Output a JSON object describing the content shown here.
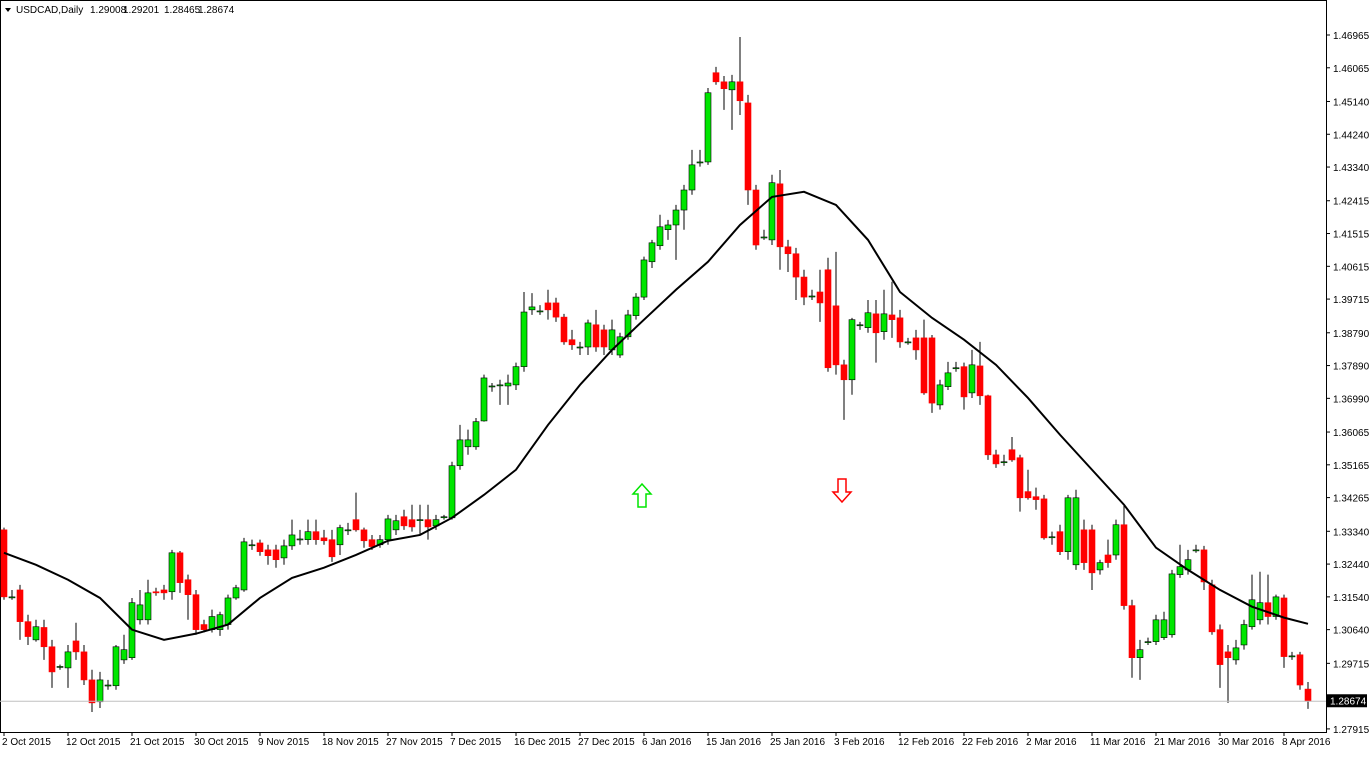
{
  "chart_data": {
    "type": "candlestick",
    "title": "USDCAD,Daily",
    "up_color": "#00e600",
    "down_color": "#ff0000",
    "ma_color": "#000000",
    "xlim": [
      -0.5,
      165.25
    ],
    "ylim": [
      1.2783,
      1.47926
    ],
    "yticks": [
      1.46965,
      1.46065,
      {
        "value": 1.4514,
        "label": "1.45140"
      },
      {
        "value": 1.4424,
        "label": "1.44240"
      },
      {
        "value": 1.4334,
        "label": "1.43340"
      },
      1.42415,
      1.41515,
      1.40615,
      1.39715,
      {
        "value": 1.3879,
        "label": "1.38790"
      },
      {
        "value": 1.3789,
        "label": "1.37890"
      },
      {
        "value": 1.3699,
        "label": "1.36990"
      },
      1.36065,
      1.35165,
      1.34265,
      {
        "value": 1.3334,
        "label": "1.33340"
      },
      {
        "value": 1.3244,
        "label": "1.32440"
      },
      {
        "value": 1.3154,
        "label": "1.31540"
      },
      {
        "value": 1.3064,
        "label": "1.30640"
      },
      1.29715,
      1.27915
    ],
    "xticks": [
      {
        "value": 0,
        "label": "2 Oct 2015"
      },
      {
        "value": 8,
        "label": "12 Oct 2015"
      },
      {
        "value": 16,
        "label": "21 Oct 2015"
      },
      {
        "value": 24,
        "label": "30 Oct 2015"
      },
      {
        "value": 32,
        "label": "9 Nov 2015"
      },
      {
        "value": 40,
        "label": "18 Nov 2015"
      },
      {
        "value": 48,
        "label": "27 Nov 2015"
      },
      {
        "value": 56,
        "label": "7 Dec 2015"
      },
      {
        "value": 64,
        "label": "16 Dec 2015"
      },
      {
        "value": 72,
        "label": "27 Dec 2015"
      },
      {
        "value": 80,
        "label": "6 Jan 2016"
      },
      {
        "value": 88,
        "label": "15 Jan 2016"
      },
      {
        "value": 96,
        "label": "25 Jan 2016"
      },
      {
        "value": 104,
        "label": "3 Feb 2016"
      },
      {
        "value": 112,
        "label": "12 Feb 2016"
      },
      {
        "value": 120,
        "label": "22 Feb 2016"
      },
      {
        "value": 128,
        "label": "2 Mar 2016"
      },
      {
        "value": 136,
        "label": "11 Mar 2016"
      },
      {
        "value": 144,
        "label": "21 Mar 2016"
      },
      {
        "value": 152,
        "label": "30 Mar 2016"
      },
      {
        "value": 160,
        "label": "8 Apr 2016"
      }
    ],
    "ohlc": [
      [
        1.3338,
        1.3344,
        1.3146,
        1.3154
      ],
      [
        1.3154,
        1.3173,
        1.3146,
        1.3154
      ],
      [
        1.3173,
        1.3187,
        1.3036,
        1.3086
      ],
      [
        1.3086,
        1.3105,
        1.3022,
        1.3045
      ],
      [
        1.3036,
        1.3091,
        1.3031,
        1.3072
      ],
      [
        1.307,
        1.3091,
        1.2981,
        1.3017
      ],
      [
        1.3017,
        1.3036,
        1.2904,
        1.2948
      ],
      [
        1.2963,
        1.2968,
        1.2954,
        1.2963
      ],
      [
        1.2959,
        1.3022,
        1.2904,
        1.3003
      ],
      [
        1.3033,
        1.3083,
        1.2981,
        1.3003
      ],
      [
        1.3003,
        1.3022,
        1.2912,
        1.2926
      ],
      [
        1.2926,
        1.2954,
        1.2838,
        1.2863
      ],
      [
        1.2866,
        1.2948,
        1.2849,
        1.2926
      ],
      [
        1.2912,
        1.2926,
        1.2899,
        1.2912
      ],
      [
        1.291,
        1.3022,
        1.2899,
        1.3017
      ],
      [
        1.2981,
        1.305,
        1.297,
        1.3009
      ],
      [
        1.2987,
        1.3151,
        1.2981,
        1.3138
      ],
      [
        1.3091,
        1.3173,
        1.3078,
        1.3132
      ],
      [
        1.3091,
        1.3201,
        1.3078,
        1.3165
      ],
      [
        1.3168,
        1.3179,
        1.3157,
        1.3165
      ],
      [
        1.3173,
        1.3187,
        1.3146,
        1.3165
      ],
      [
        1.3168,
        1.3283,
        1.3146,
        1.3275
      ],
      [
        1.3275,
        1.328,
        1.3165,
        1.3193
      ],
      [
        1.3201,
        1.3215,
        1.3091,
        1.316
      ],
      [
        1.316,
        1.3173,
        1.305,
        1.3064
      ],
      [
        1.3078,
        1.3091,
        1.3056,
        1.3064
      ],
      [
        1.3064,
        1.3119,
        1.3056,
        1.31
      ],
      [
        1.3064,
        1.3113,
        1.3047,
        1.3105
      ],
      [
        1.3078,
        1.316,
        1.3064,
        1.3151
      ],
      [
        1.3151,
        1.3187,
        1.3146,
        1.3179
      ],
      [
        1.3173,
        1.3316,
        1.3168,
        1.3305
      ],
      [
        1.3297,
        1.3311,
        1.3283,
        1.3297
      ],
      [
        1.3302,
        1.3311,
        1.3267,
        1.3278
      ],
      [
        1.3283,
        1.3297,
        1.3242,
        1.3267
      ],
      [
        1.3283,
        1.3297,
        1.3234,
        1.3256
      ],
      [
        1.3261,
        1.3311,
        1.3242,
        1.3294
      ],
      [
        1.3294,
        1.3366,
        1.3283,
        1.3324
      ],
      [
        1.3313,
        1.3338,
        1.3297,
        1.3313
      ],
      [
        1.3311,
        1.3366,
        1.3297,
        1.3333
      ],
      [
        1.3333,
        1.3366,
        1.3297,
        1.3311
      ],
      [
        1.3316,
        1.3338,
        1.3297,
        1.3308
      ],
      [
        1.3311,
        1.3338,
        1.325,
        1.3264
      ],
      [
        1.3297,
        1.3352,
        1.3269,
        1.3344
      ],
      [
        1.3338,
        1.3357,
        1.3324,
        1.3338
      ],
      [
        1.3366,
        1.344,
        1.3333,
        1.3338
      ],
      [
        1.3338,
        1.3344,
        1.3289,
        1.3308
      ],
      [
        1.3311,
        1.3324,
        1.3283,
        1.3292
      ],
      [
        1.3297,
        1.3324,
        1.3289,
        1.3311
      ],
      [
        1.3311,
        1.3379,
        1.3297,
        1.3368
      ],
      [
        1.3338,
        1.3379,
        1.3324,
        1.3363
      ],
      [
        1.3374,
        1.3393,
        1.3338,
        1.3349
      ],
      [
        1.3366,
        1.3407,
        1.3333,
        1.3346
      ],
      [
        1.3366,
        1.3407,
        1.3324,
        1.3366
      ],
      [
        1.3366,
        1.3407,
        1.3311,
        1.3346
      ],
      [
        1.3349,
        1.3379,
        1.3338,
        1.3366
      ],
      [
        1.3374,
        1.3379,
        1.3366,
        1.3374
      ],
      [
        1.3371,
        1.3525,
        1.3366,
        1.3514
      ],
      [
        1.3514,
        1.3626,
        1.3503,
        1.3585
      ],
      [
        1.3566,
        1.3613,
        1.3544,
        1.3585
      ],
      [
        1.3566,
        1.3645,
        1.3558,
        1.3635
      ],
      [
        1.3637,
        1.3764,
        1.3635,
        1.3755
      ],
      [
        1.3733,
        1.3741,
        1.3717,
        1.3733
      ],
      [
        1.3736,
        1.375,
        1.3681,
        1.3736
      ],
      [
        1.3733,
        1.3764,
        1.3681,
        1.3741
      ],
      [
        1.3736,
        1.3797,
        1.3722,
        1.3786
      ],
      [
        1.3786,
        1.3991,
        1.3772,
        1.3936
      ],
      [
        1.3942,
        1.3988,
        1.3928,
        1.395
      ],
      [
        1.3939,
        1.3955,
        1.3928,
        1.3939
      ],
      [
        1.3961,
        1.3997,
        1.3915,
        1.3942
      ],
      [
        1.3961,
        1.3975,
        1.3909,
        1.3922
      ],
      [
        1.3922,
        1.3931,
        1.3846,
        1.3854
      ],
      [
        1.386,
        1.3887,
        1.3832,
        1.3846
      ],
      [
        1.384,
        1.3854,
        1.3818,
        1.384
      ],
      [
        1.384,
        1.3915,
        1.3818,
        1.3906
      ],
      [
        1.3901,
        1.3942,
        1.3827,
        1.384
      ],
      [
        1.3887,
        1.3901,
        1.3818,
        1.384
      ],
      [
        1.3832,
        1.3915,
        1.3818,
        1.3887
      ],
      [
        1.3818,
        1.3879,
        1.381,
        1.3868
      ],
      [
        1.3868,
        1.3942,
        1.386,
        1.3928
      ],
      [
        1.3926,
        1.3988,
        1.3915,
        1.3977
      ],
      [
        1.3977,
        1.4088,
        1.3969,
        1.4079
      ],
      [
        1.4074,
        1.4134,
        1.4057,
        1.4126
      ],
      [
        1.4118,
        1.4203,
        1.4107,
        1.417
      ],
      [
        1.4162,
        1.4189,
        1.4134,
        1.4175
      ],
      [
        1.4175,
        1.423,
        1.4079,
        1.4216
      ],
      [
        1.4216,
        1.4285,
        1.4162,
        1.4271
      ],
      [
        1.4271,
        1.4381,
        1.4258,
        1.434
      ],
      [
        1.4348,
        1.4381,
        1.4335,
        1.4348
      ],
      [
        1.4348,
        1.4551,
        1.434,
        1.4538
      ],
      [
        1.4593,
        1.4609,
        1.456,
        1.4568
      ],
      [
        1.4568,
        1.4584,
        1.4491,
        1.4549
      ],
      [
        1.4546,
        1.4587,
        1.4436,
        1.4568
      ],
      [
        1.4568,
        1.4691,
        1.4477,
        1.4516
      ],
      [
        1.451,
        1.4532,
        1.423,
        1.4271
      ],
      [
        1.4271,
        1.4285,
        1.4107,
        1.412
      ],
      [
        1.4142,
        1.4162,
        1.4134,
        1.4142
      ],
      [
        1.4134,
        1.4313,
        1.412,
        1.4291
      ],
      [
        1.4288,
        1.4326,
        1.4052,
        1.4115
      ],
      [
        1.4115,
        1.4134,
        1.4046,
        1.4096
      ],
      [
        1.4096,
        1.4112,
        1.3969,
        1.4032
      ],
      [
        1.4032,
        1.4052,
        1.3955,
        1.3977
      ],
      [
        1.398,
        1.3997,
        1.3969,
        1.398
      ],
      [
        1.3991,
        1.4052,
        1.3909,
        1.3961
      ],
      [
        1.4052,
        1.4085,
        1.3772,
        1.3783
      ],
      [
        1.3953,
        1.4101,
        1.3764,
        1.3791
      ],
      [
        1.3791,
        1.3805,
        1.364,
        1.375
      ],
      [
        1.375,
        1.392,
        1.3709,
        1.3915
      ],
      [
        1.3901,
        1.3909,
        1.3887,
        1.3901
      ],
      [
        1.3893,
        1.3969,
        1.3879,
        1.3934
      ],
      [
        1.3931,
        1.3969,
        1.3797,
        1.3879
      ],
      [
        1.3882,
        1.3997,
        1.386,
        1.3931
      ],
      [
        1.3928,
        1.4019,
        1.3865,
        1.3915
      ],
      [
        1.392,
        1.3942,
        1.3838,
        1.3854
      ],
      [
        1.3854,
        1.3865,
        1.3846,
        1.3854
      ],
      [
        1.3865,
        1.3887,
        1.3805,
        1.3832
      ],
      [
        1.3865,
        1.3915,
        1.3709,
        1.3714
      ],
      [
        1.3865,
        1.3873,
        1.3659,
        1.3686
      ],
      [
        1.3681,
        1.375,
        1.3668,
        1.3736
      ],
      [
        1.3731,
        1.3799,
        1.3722,
        1.3769
      ],
      [
        1.3783,
        1.3799,
        1.3772,
        1.3783
      ],
      [
        1.3786,
        1.3797,
        1.3668,
        1.3703
      ],
      [
        1.3714,
        1.3832,
        1.37,
        1.3791
      ],
      [
        1.3788,
        1.3854,
        1.3681,
        1.3706
      ],
      [
        1.3706,
        1.3709,
        1.353,
        1.3544
      ],
      [
        1.3544,
        1.3558,
        1.3508,
        1.3519
      ],
      [
        1.3525,
        1.3544,
        1.3514,
        1.3525
      ],
      [
        1.3558,
        1.3593,
        1.3525,
        1.353
      ],
      [
        1.3536,
        1.3544,
        1.3388,
        1.3426
      ],
      [
        1.3443,
        1.3503,
        1.3421,
        1.3426
      ],
      [
        1.3429,
        1.3454,
        1.3393,
        1.3421
      ],
      [
        1.3423,
        1.3434,
        1.3311,
        1.3316
      ],
      [
        1.3319,
        1.3333,
        1.3297,
        1.3319
      ],
      [
        1.3333,
        1.3352,
        1.3269,
        1.3278
      ],
      [
        1.3278,
        1.3434,
        1.3256,
        1.3426
      ],
      [
        1.3242,
        1.3448,
        1.3228,
        1.3426
      ],
      [
        1.3338,
        1.3366,
        1.3228,
        1.3248
      ],
      [
        1.3338,
        1.3352,
        1.3173,
        1.322
      ],
      [
        1.3228,
        1.3256,
        1.3215,
        1.3248
      ],
      [
        1.3269,
        1.3311,
        1.3234,
        1.3248
      ],
      [
        1.3269,
        1.3366,
        1.3256,
        1.3352
      ],
      [
        1.3352,
        1.3407,
        1.3119,
        1.313
      ],
      [
        1.313,
        1.3146,
        1.2932,
        1.2987
      ],
      [
        1.2987,
        1.3036,
        1.2926,
        1.3009
      ],
      [
        1.3031,
        1.3042,
        1.3022,
        1.3031
      ],
      [
        1.3031,
        1.3105,
        1.3022,
        1.3091
      ],
      [
        1.3042,
        1.3113,
        1.3036,
        1.3091
      ],
      [
        1.305,
        1.3228,
        1.3042,
        1.3217
      ],
      [
        1.3215,
        1.3297,
        1.3206,
        1.3237
      ],
      [
        1.3228,
        1.3283,
        1.3215,
        1.3256
      ],
      [
        1.3283,
        1.3297,
        1.3275,
        1.3283
      ],
      [
        1.3283,
        1.3294,
        1.3173,
        1.3195
      ],
      [
        1.3187,
        1.3201,
        1.305,
        1.3058
      ],
      [
        1.3064,
        1.3078,
        1.2904,
        1.2968
      ],
      [
        1.3003,
        1.3022,
        1.2863,
        1.2987
      ],
      [
        1.2981,
        1.3036,
        1.2968,
        1.3014
      ],
      [
        1.3022,
        1.3091,
        1.3009,
        1.3078
      ],
      [
        1.3072,
        1.3215,
        1.3064,
        1.3146
      ],
      [
        1.3091,
        1.3223,
        1.3078,
        1.3138
      ],
      [
        1.3138,
        1.3215,
        1.3078,
        1.31
      ],
      [
        1.31,
        1.316,
        1.3091,
        1.3154
      ],
      [
        1.3151,
        1.316,
        1.2959,
        1.299
      ],
      [
        1.2992,
        1.3003,
        1.2981,
        1.2992
      ],
      [
        1.2995,
        1.3003,
        1.2899,
        1.2912
      ],
      [
        1.29008,
        1.29201,
        1.28465,
        1.28674
      ]
    ],
    "ma": {
      "x": [
        0,
        4,
        8,
        12,
        16,
        20,
        24,
        28,
        32,
        36,
        40,
        44,
        48,
        52,
        56,
        60,
        64,
        68,
        72,
        76,
        80,
        84,
        88,
        92,
        96,
        100,
        104,
        108,
        112,
        116,
        120,
        124,
        128,
        132,
        136,
        140,
        144,
        148,
        152,
        156,
        160,
        163
      ],
      "values": [
        1.3275,
        1.3242,
        1.3201,
        1.3151,
        1.3064,
        1.3036,
        1.3053,
        1.3078,
        1.3151,
        1.3206,
        1.3234,
        1.3269,
        1.3308,
        1.3324,
        1.3371,
        1.3434,
        1.3503,
        1.3626,
        1.3736,
        1.3832,
        1.3915,
        1.3997,
        1.4074,
        1.4175,
        1.4252,
        1.4266,
        1.423,
        1.4134,
        1.3991,
        1.392,
        1.386,
        1.3791,
        1.37,
        1.3599,
        1.3503,
        1.3407,
        1.3289,
        1.3228,
        1.3173,
        1.3127,
        1.3097,
        1.308
      ]
    }
  }
}
